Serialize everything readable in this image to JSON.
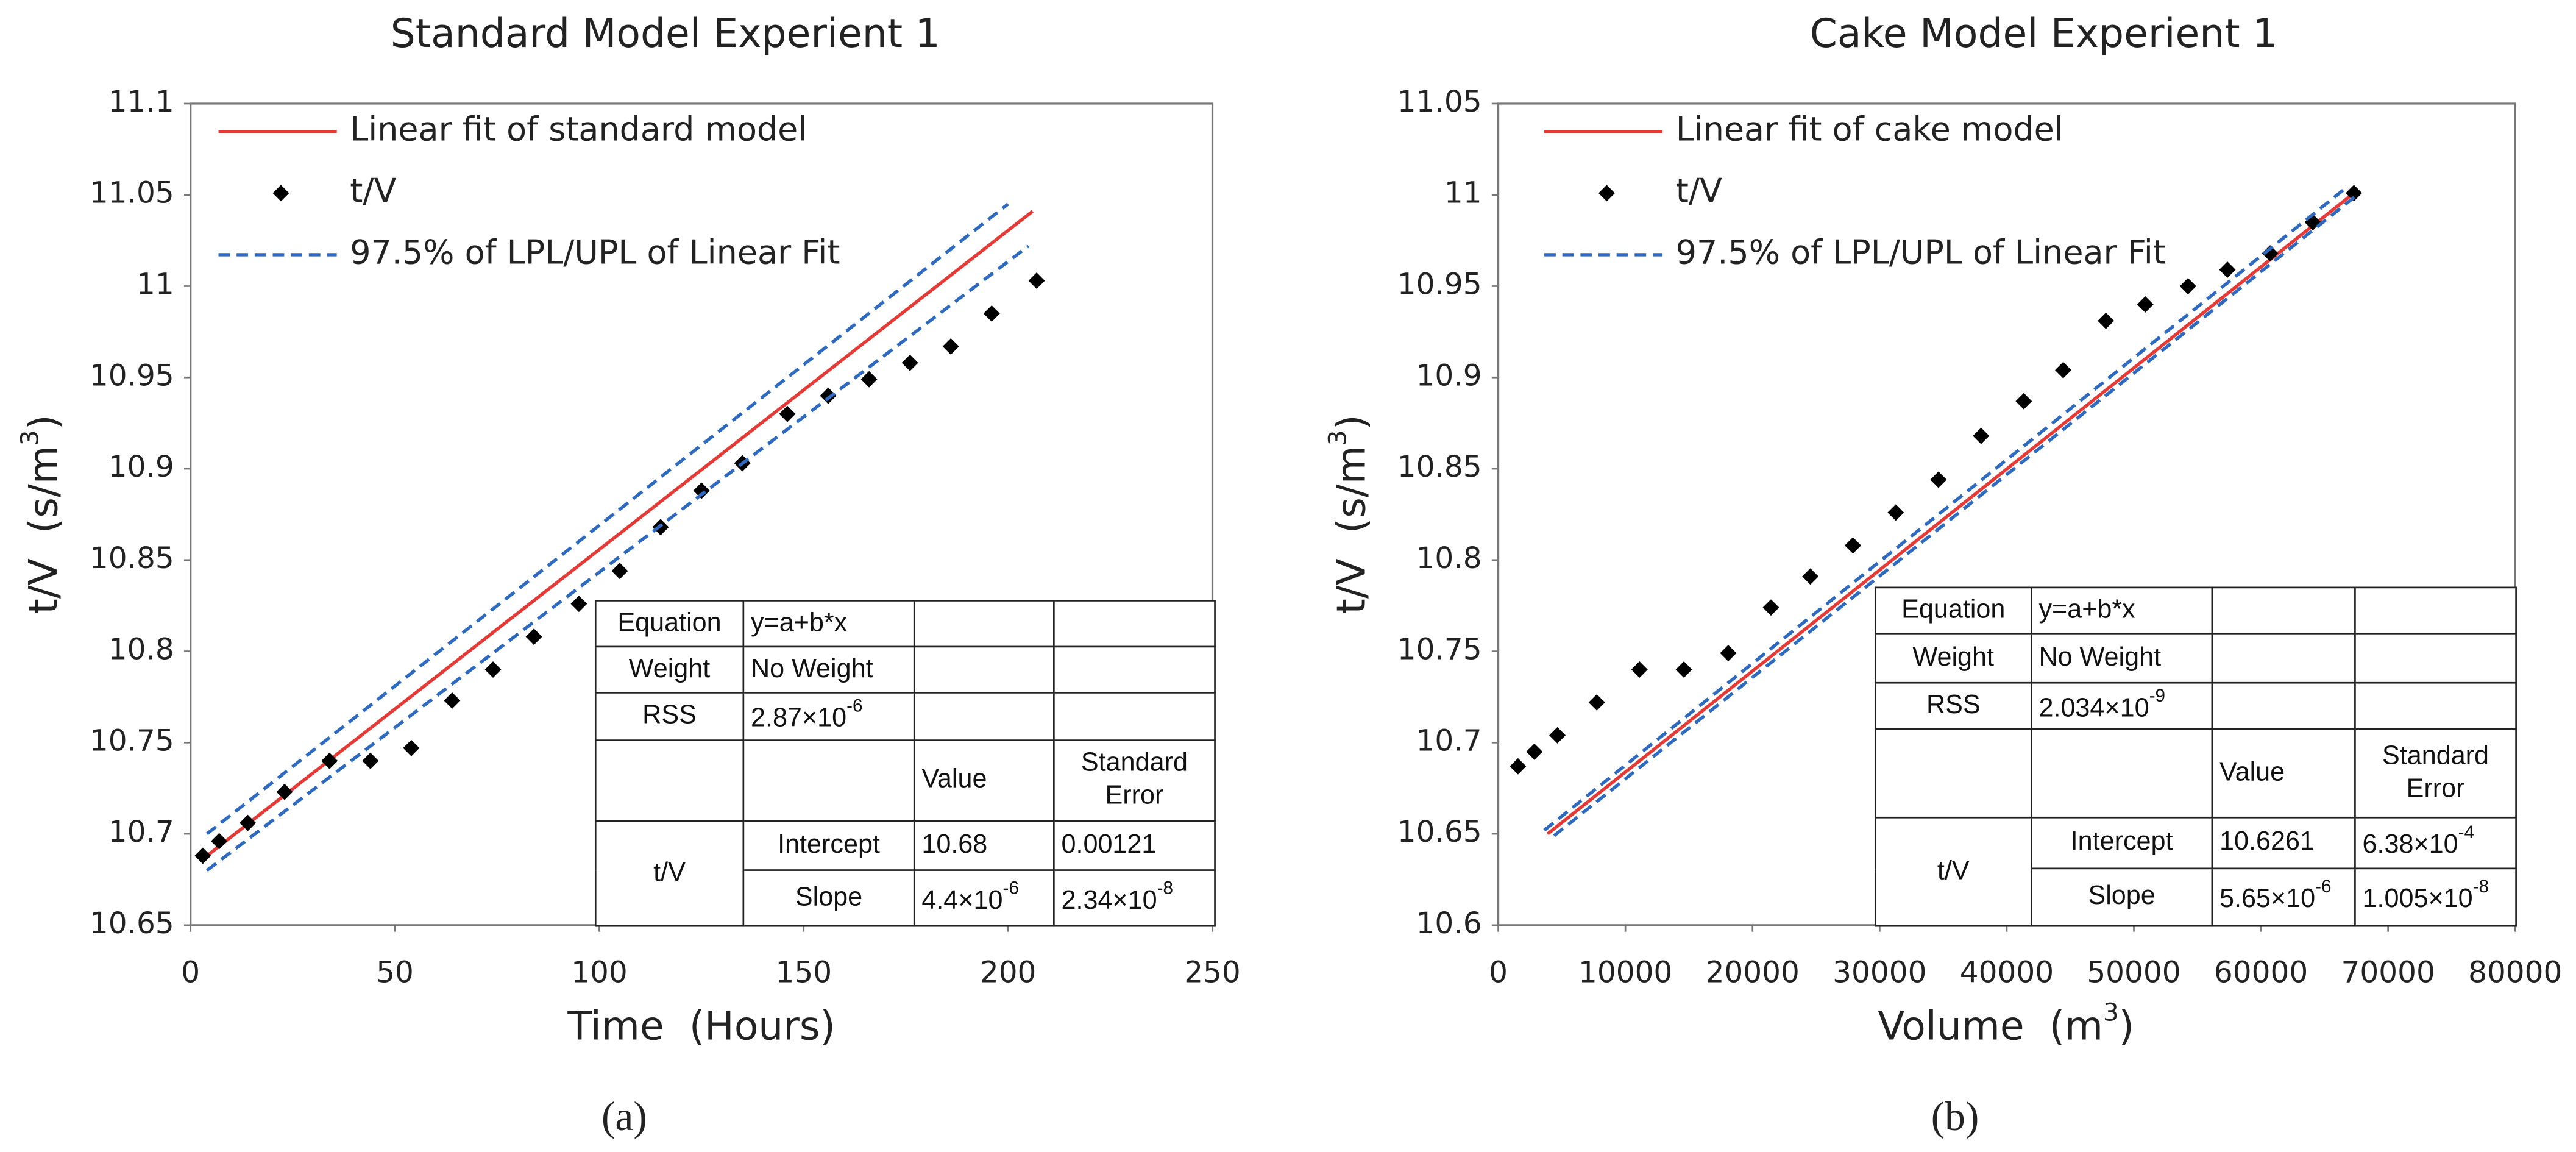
{
  "chart_data": [
    {
      "type": "scatter",
      "title": "Standard Model Experient 1",
      "xlabel": "Time  (Hours)",
      "ylabel": {
        "text": "t/V  (s/m",
        "sup": "3",
        "tail": ")"
      },
      "caption": "(a)",
      "xlim": [
        0,
        250
      ],
      "xticks": [
        0,
        50,
        100,
        150,
        200,
        250
      ],
      "ylim": [
        10.65,
        11.1
      ],
      "yticks": [
        10.65,
        10.7,
        10.75,
        10.8,
        10.85,
        10.9,
        10.95,
        11,
        11.05,
        11.1
      ],
      "grid": false,
      "legend": "upper left",
      "series": [
        {
          "name": "Linear fit of standard model",
          "color": "#e53a35",
          "style": "solid",
          "x": [
            4,
            206
          ],
          "values": [
            10.688,
            11.041
          ]
        },
        {
          "name": "t/V",
          "color": "#000000",
          "marker": "diamond",
          "x": [
            3,
            7,
            14,
            23,
            34,
            44,
            54,
            64,
            74,
            84,
            95,
            105,
            115,
            125,
            135,
            146,
            156,
            166,
            176,
            186,
            196,
            207
          ],
          "values": [
            10.688,
            10.696,
            10.706,
            10.723,
            10.74,
            10.74,
            10.747,
            10.773,
            10.79,
            10.808,
            10.826,
            10.844,
            10.868,
            10.888,
            10.903,
            10.93,
            10.94,
            10.949,
            10.958,
            10.967,
            10.985,
            11.003
          ]
        },
        {
          "name": "97.5% of LPL/UPL of Linear Fit",
          "color": "#2e6bc0",
          "style": "dashed",
          "upper": {
            "x": [
              4,
              200
            ],
            "values": [
              10.7,
              11.045
            ]
          },
          "lower": {
            "x": [
              4,
              205
            ],
            "values": [
              10.68,
              11.022
            ]
          }
        }
      ],
      "table": {
        "rows": [
          {
            "label": "Equation",
            "value": "y=a+b*x"
          },
          {
            "label": "Weight",
            "value": "No Weight"
          },
          {
            "label": "RSS",
            "value": {
              "base": "2.87×10",
              "exp": "-6"
            }
          }
        ],
        "columns": [
          "Value",
          "Standard Error"
        ],
        "group": "t/V",
        "params": [
          {
            "name": "Intercept",
            "value": 10.68,
            "error": 0.00121
          },
          {
            "name": "Slope",
            "value": {
              "base": "4.4×10",
              "exp": "-6"
            },
            "error": {
              "base": "2.34×10",
              "exp": "-8"
            }
          }
        ]
      }
    },
    {
      "type": "scatter",
      "title": "Cake Model Experient 1",
      "xlabel": {
        "text": "Volume  (m",
        "sup": "3",
        "tail": ")"
      },
      "ylabel": {
        "text": "t/V  (s/m",
        "sup": "3",
        "tail": ")"
      },
      "caption": "(b)",
      "xlim": [
        0,
        80000
      ],
      "xticks": [
        0,
        10000,
        20000,
        30000,
        40000,
        50000,
        60000,
        70000,
        80000
      ],
      "ylim": [
        10.6,
        11.05
      ],
      "yticks": [
        10.6,
        10.65,
        10.7,
        10.75,
        10.8,
        10.85,
        10.9,
        10.95,
        11,
        11.05
      ],
      "grid": false,
      "legend": "upper left",
      "series": [
        {
          "name": "Linear fit of cake model",
          "color": "#e53a35",
          "style": "solid",
          "x": [
            3880,
            67310
          ],
          "values": [
            10.65,
            11.001
          ]
        },
        {
          "name": "t/V",
          "color": "#000000",
          "marker": "diamond",
          "x": [
            1550,
            2840,
            4650,
            7750,
            11110,
            14600,
            18090,
            21450,
            24550,
            27900,
            31270,
            34630,
            37980,
            41340,
            44440,
            47800,
            50900,
            54260,
            57360,
            60720,
            64080,
            67310
          ],
          "values": [
            10.687,
            10.695,
            10.704,
            10.722,
            10.74,
            10.74,
            10.749,
            10.774,
            10.791,
            10.808,
            10.826,
            10.844,
            10.868,
            10.887,
            10.904,
            10.931,
            10.94,
            10.95,
            10.959,
            10.968,
            10.985,
            11.001
          ]
        },
        {
          "name": "97.5% of LPL/UPL of Linear Fit",
          "color": "#2e6bc0",
          "style": "dashed",
          "upper": {
            "x": [
              3620,
              66540
            ],
            "values": [
              10.652,
              11.003
            ]
          },
          "lower": {
            "x": [
              4390,
              67570
            ],
            "values": [
              10.649,
              11
            ]
          }
        }
      ],
      "table": {
        "rows": [
          {
            "label": "Equation",
            "value": "y=a+b*x"
          },
          {
            "label": "Weight",
            "value": "No Weight"
          },
          {
            "label": "RSS",
            "value": {
              "base": "2.034×10",
              "exp": "-9"
            }
          }
        ],
        "columns": [
          "Value",
          "Standard Error"
        ],
        "group": "t/V",
        "params": [
          {
            "name": "Intercept",
            "value": 10.6261,
            "error": {
              "base": "6.38×10",
              "exp": "-4"
            }
          },
          {
            "name": "Slope",
            "value": {
              "base": "5.65×10",
              "exp": "-6"
            },
            "error": {
              "base": "1.005×10",
              "exp": "-8"
            }
          }
        ]
      }
    }
  ]
}
